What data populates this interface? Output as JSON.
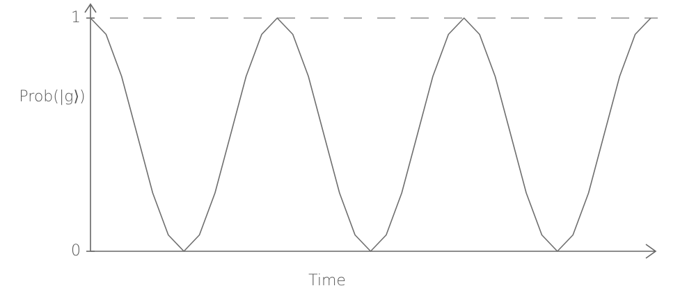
{
  "chart_data": {
    "type": "line",
    "y_label": "Prob(|g⟩)",
    "x_label": "Time",
    "x": [
      0,
      1,
      2,
      3,
      4,
      5,
      6,
      7,
      8,
      9,
      10,
      11,
      12,
      13,
      14,
      15,
      16,
      17,
      18,
      19,
      20,
      21,
      22,
      23,
      24,
      25,
      26,
      27,
      28,
      29,
      30,
      31,
      32,
      33,
      34,
      35,
      36
    ],
    "values": [
      1,
      0.93,
      0.75,
      0.5,
      0.25,
      0.07,
      0,
      0.07,
      0.25,
      0.5,
      0.75,
      0.93,
      1,
      0.93,
      0.75,
      0.5,
      0.25,
      0.07,
      0,
      0.07,
      0.25,
      0.5,
      0.75,
      0.93,
      1,
      0.93,
      0.75,
      0.5,
      0.25,
      0.07,
      0,
      0.07,
      0.25,
      0.5,
      0.75,
      0.93,
      1
    ],
    "color": "#6e6e6e",
    "xlim": [
      0,
      36
    ],
    "ylim": [
      0,
      1
    ],
    "yticks": [
      0,
      1
    ],
    "reference_line": 1,
    "grid": false
  }
}
